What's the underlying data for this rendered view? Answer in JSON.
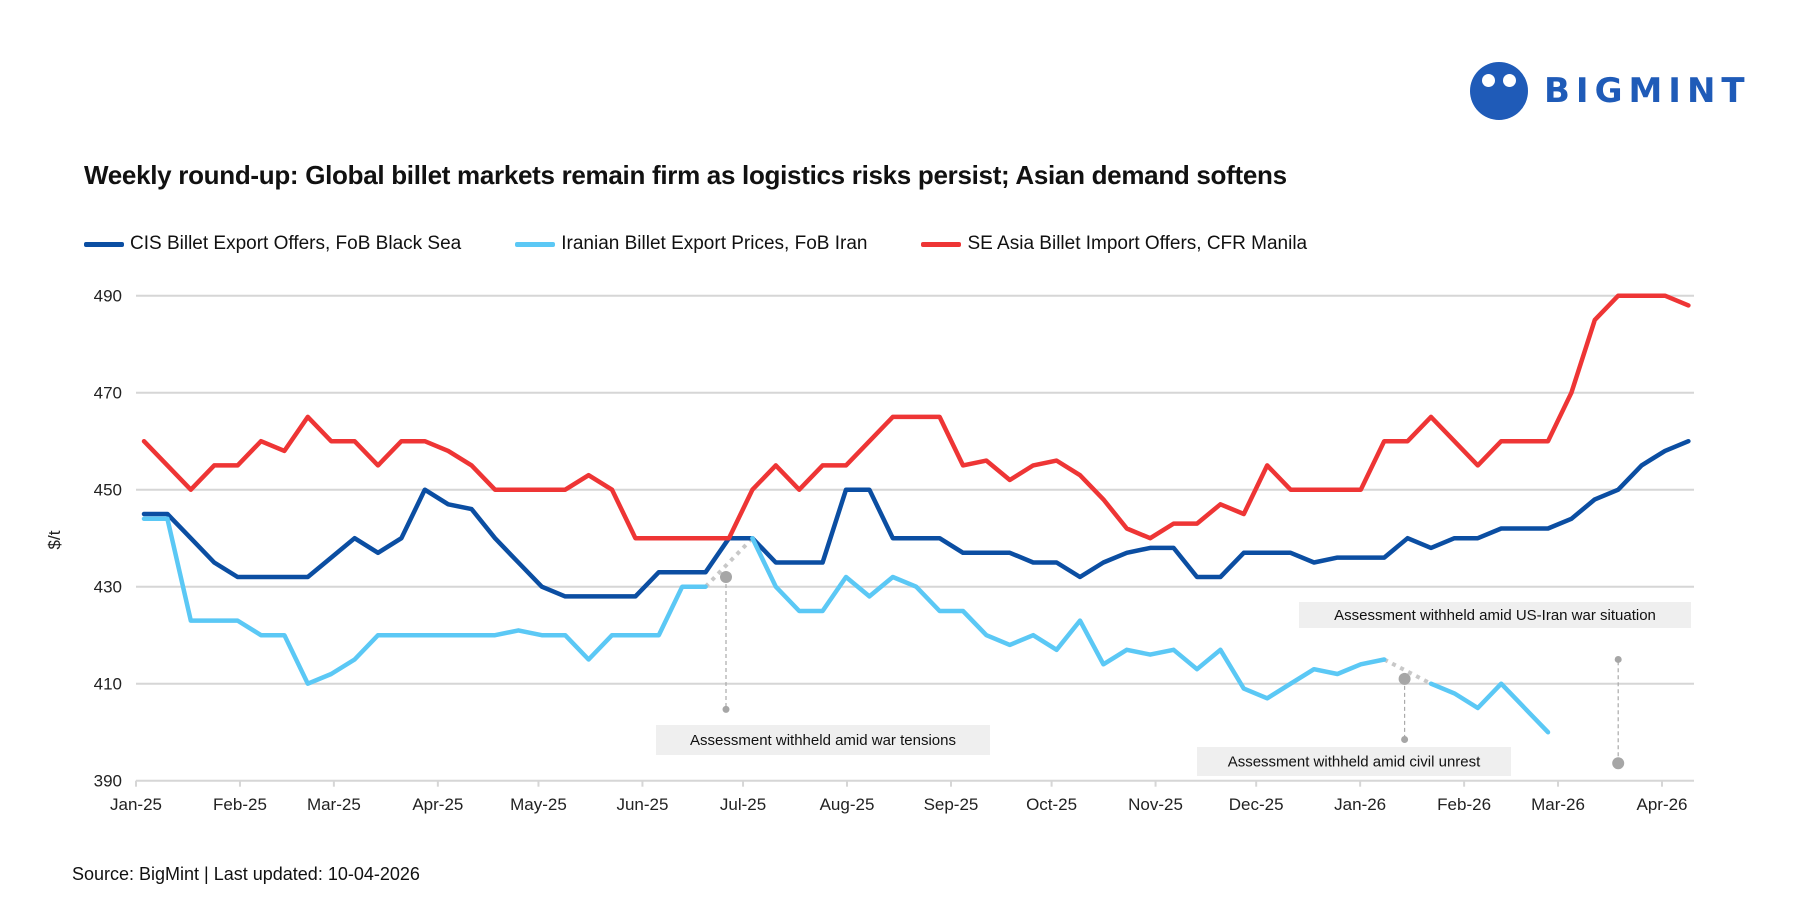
{
  "logo": {
    "text": "BIGMINT",
    "color": "#1f5bb8"
  },
  "chart_data": {
    "type": "line",
    "title": "Weekly round-up: Global billet markets remain firm as logistics risks persist; Asian demand softens",
    "ylabel": "$/t",
    "xlabel": "",
    "ylim": [
      390,
      490
    ],
    "yticks": [
      390,
      410,
      430,
      450,
      470,
      490
    ],
    "xtick_labels": [
      "Jan-25",
      "Feb-25",
      "Mar-25",
      "Apr-25",
      "May-25",
      "Jun-25",
      "Jul-25",
      "Aug-25",
      "Sep-25",
      "Oct-25",
      "Nov-25",
      "Dec-25",
      "Jan-26",
      "Feb-26",
      "Mar-26",
      "Apr-26"
    ],
    "x_frequency": "weekly",
    "grid": true,
    "legend_position": "top-left",
    "series": [
      {
        "name": "CIS Billet Export Offers, FoB Black Sea",
        "color": "#0b4ea2",
        "values": [
          445,
          445,
          440,
          435,
          432,
          432,
          432,
          432,
          436,
          440,
          437,
          440,
          450,
          447,
          446,
          440,
          435,
          430,
          428,
          428,
          428,
          428,
          433,
          433,
          433,
          440,
          440,
          435,
          435,
          435,
          450,
          450,
          440,
          440,
          440,
          437,
          437,
          437,
          435,
          435,
          432,
          435,
          437,
          438,
          438,
          432,
          432,
          437,
          437,
          437,
          435,
          436,
          436,
          436,
          440,
          438,
          440,
          440,
          442,
          442,
          442,
          444,
          448,
          450,
          455,
          458,
          460
        ]
      },
      {
        "name": "Iranian Billet Export Prices, FoB Iran",
        "color": "#5bc8f5",
        "values": [
          444,
          444,
          423,
          423,
          423,
          420,
          420,
          410,
          412,
          415,
          420,
          420,
          420,
          420,
          420,
          420,
          421,
          420,
          420,
          415,
          420,
          420,
          420,
          430,
          430,
          null,
          440,
          430,
          425,
          425,
          432,
          428,
          432,
          430,
          425,
          425,
          420,
          418,
          420,
          417,
          423,
          414,
          417,
          416,
          417,
          413,
          417,
          409,
          407,
          410,
          413,
          412,
          414,
          415,
          null,
          410,
          408,
          405,
          410,
          405,
          400,
          null,
          null,
          null,
          null,
          null,
          null
        ]
      },
      {
        "name": "SE Asia Billet Import Offers, CFR Manila",
        "color": "#ee3535",
        "values": [
          460,
          455,
          450,
          455,
          455,
          460,
          458,
          465,
          460,
          460,
          455,
          460,
          460,
          458,
          455,
          450,
          450,
          450,
          450,
          453,
          450,
          440,
          440,
          440,
          440,
          440,
          450,
          455,
          450,
          455,
          455,
          460,
          465,
          465,
          465,
          455,
          456,
          452,
          455,
          456,
          453,
          448,
          442,
          440,
          443,
          443,
          447,
          445,
          455,
          450,
          450,
          450,
          450,
          460,
          460,
          465,
          460,
          455,
          460,
          460,
          460,
          470,
          485,
          490,
          490,
          490,
          488
        ]
      }
    ],
    "annotations": [
      {
        "text": "Assessment withheld amid  war tensions"
      },
      {
        "text": "Assessment withheld amid civil unrest"
      },
      {
        "text": "Assessment withheld amid US-Iran war situation"
      }
    ]
  },
  "source": "Source: BigMint | Last updated: 10-04-2026"
}
